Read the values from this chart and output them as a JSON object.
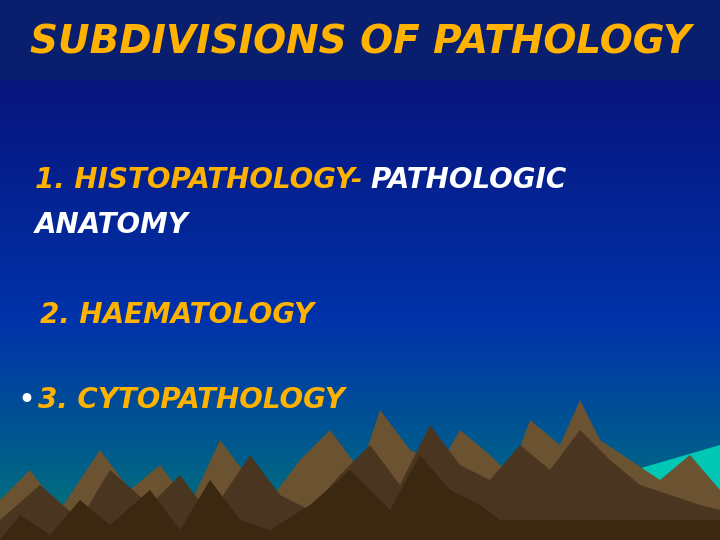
{
  "title": "SUBDIVISIONS OF PATHOLOGY",
  "title_color": "#FFB300",
  "title_fontsize": 28,
  "bg_top_color": "#0A0A6E",
  "bg_mid_color": "#0033AA",
  "bg_bottom_color": "#007878",
  "line1a": "1. HISTOPATHOLOGY-",
  "line1b": "PATHOLOGIC",
  "line2": "ANATOMY",
  "line3": "2. HAEMATOLOGY",
  "line4": "3. CYTOPATHOLOGY",
  "text_color_yellow": "#FFB300",
  "text_color_white": "#FFFFFF",
  "text_fontsize": 20,
  "header_bg_color": "#0A1E6E",
  "mountain_color1": "#6B5230",
  "mountain_color2": "#4A3520",
  "mountain_color3": "#3B2810",
  "teal_color": "#00C8B4"
}
